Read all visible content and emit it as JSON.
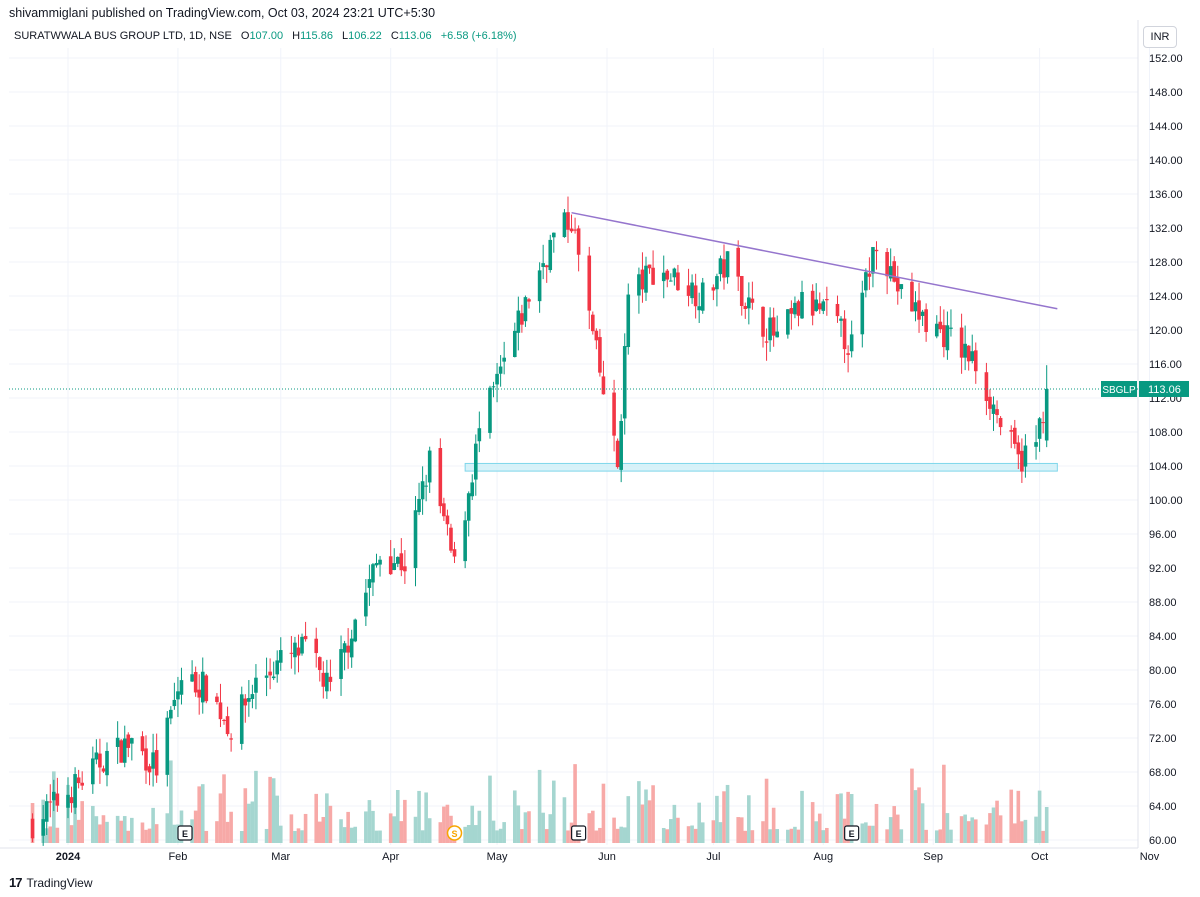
{
  "header": {
    "publish_line": "shivammiglani published on TradingView.com, Oct 03, 2024 23:21 UTC+5:30",
    "symbol_line": "SURATWWALA BUS GROUP LTD, 1D, NSE",
    "ohlc": [
      {
        "key": "O",
        "value": "107.00"
      },
      {
        "key": "H",
        "value": "115.86"
      },
      {
        "key": "L",
        "value": "106.22"
      },
      {
        "key": "C",
        "value": "113.06"
      }
    ],
    "change": "+6.58 (+6.18%)",
    "currency": "INR"
  },
  "footer": {
    "brand_logo": "17",
    "brand_name": "TradingView"
  },
  "colors": {
    "up": "#089981",
    "down": "#f23645",
    "up_volume": "#a5d6d0",
    "down_volume": "#f7a9a7",
    "trendline": "#9575cd",
    "zone": "#cdeff7",
    "zone_border": "#7fd6ea",
    "grid": "#f0f3fa"
  },
  "chart_data": {
    "type": "candlestick",
    "y_axis": {
      "range": [
        60,
        154
      ],
      "ticks": [
        "152.00",
        "148.00",
        "144.00",
        "140.00",
        "136.00",
        "132.00",
        "128.00",
        "124.00",
        "120.00",
        "116.00",
        "112.00",
        "108.00",
        "104.00",
        "100.00",
        "96.00",
        "92.00",
        "88.00",
        "84.00",
        "80.00",
        "76.00",
        "72.00",
        "68.00",
        "64.00",
        "60.00"
      ]
    },
    "x_axis": {
      "ticks": [
        {
          "label": "2024",
          "date": "2024-01-01"
        },
        {
          "label": "Feb",
          "date": "2024-02-01"
        },
        {
          "label": "Mar",
          "date": "2024-03-01"
        },
        {
          "label": "Apr",
          "date": "2024-04-01"
        },
        {
          "label": "May",
          "date": "2024-05-01"
        },
        {
          "label": "Jun",
          "date": "2024-06-01"
        },
        {
          "label": "Jul",
          "date": "2024-07-01"
        },
        {
          "label": "Aug",
          "date": "2024-08-01"
        },
        {
          "label": "Sep",
          "date": "2024-09-01"
        },
        {
          "label": "Oct",
          "date": "2024-10-01"
        },
        {
          "label": "Nov",
          "date": "2024-11-01"
        }
      ]
    },
    "last_price": {
      "symbol": "SBGLP",
      "value": "113.06"
    },
    "trendline": {
      "from": {
        "date": "2024-05-22",
        "price": 133.8
      },
      "to": {
        "date": "2024-10-06",
        "price": 122.5
      }
    },
    "support_zone": {
      "from_date": "2024-04-22",
      "to_date": "2024-10-06",
      "low": 103.4,
      "high": 104.3
    },
    "events": [
      {
        "type": "E",
        "date": "2024-02-03"
      },
      {
        "type": "S",
        "date": "2024-04-19"
      },
      {
        "type": "E",
        "date": "2024-05-24"
      },
      {
        "type": "E",
        "date": "2024-08-09"
      }
    ],
    "anchors": [
      {
        "date": "2023-12-22",
        "close": 62.0
      },
      {
        "date": "2024-01-05",
        "close": 67.0
      },
      {
        "date": "2024-01-12",
        "close": 70.0
      },
      {
        "date": "2024-01-19",
        "close": 71.5
      },
      {
        "date": "2024-01-26",
        "close": 68.5
      },
      {
        "date": "2024-02-02",
        "close": 79.0
      },
      {
        "date": "2024-02-09",
        "close": 78.0
      },
      {
        "date": "2024-02-16",
        "close": 73.0
      },
      {
        "date": "2024-02-23",
        "close": 78.5
      },
      {
        "date": "2024-03-01",
        "close": 81.0
      },
      {
        "date": "2024-03-08",
        "close": 82.5
      },
      {
        "date": "2024-03-15",
        "close": 77.5
      },
      {
        "date": "2024-03-22",
        "close": 86.0
      },
      {
        "date": "2024-03-29",
        "close": 93.5
      },
      {
        "date": "2024-04-05",
        "close": 92.5
      },
      {
        "date": "2024-04-12",
        "close": 104.5
      },
      {
        "date": "2024-04-19",
        "close": 92.0
      },
      {
        "date": "2024-04-26",
        "close": 108.0
      },
      {
        "date": "2024-05-03",
        "close": 116.0
      },
      {
        "date": "2024-05-10",
        "close": 124.0
      },
      {
        "date": "2024-05-17",
        "close": 131.0
      },
      {
        "date": "2024-05-22",
        "close": 133.0
      },
      {
        "date": "2024-05-29",
        "close": 117.0
      },
      {
        "date": "2024-06-04",
        "close": 104.0
      },
      {
        "date": "2024-06-07",
        "close": 124.0
      },
      {
        "date": "2024-06-14",
        "close": 127.0
      },
      {
        "date": "2024-06-21",
        "close": 126.0
      },
      {
        "date": "2024-06-28",
        "close": 124.0
      },
      {
        "date": "2024-07-05",
        "close": 128.0
      },
      {
        "date": "2024-07-12",
        "close": 122.0
      },
      {
        "date": "2024-07-19",
        "close": 119.0
      },
      {
        "date": "2024-07-26",
        "close": 123.0
      },
      {
        "date": "2024-08-02",
        "close": 122.0
      },
      {
        "date": "2024-08-09",
        "close": 118.0
      },
      {
        "date": "2024-08-16",
        "close": 131.0
      },
      {
        "date": "2024-08-23",
        "close": 124.0
      },
      {
        "date": "2024-08-30",
        "close": 121.0
      },
      {
        "date": "2024-09-06",
        "close": 119.0
      },
      {
        "date": "2024-09-13",
        "close": 116.0
      },
      {
        "date": "2024-09-20",
        "close": 109.0
      },
      {
        "date": "2024-09-25",
        "close": 104.5
      },
      {
        "date": "2024-09-30",
        "close": 106.5
      },
      {
        "date": "2024-10-03",
        "close": 113.06
      }
    ]
  }
}
